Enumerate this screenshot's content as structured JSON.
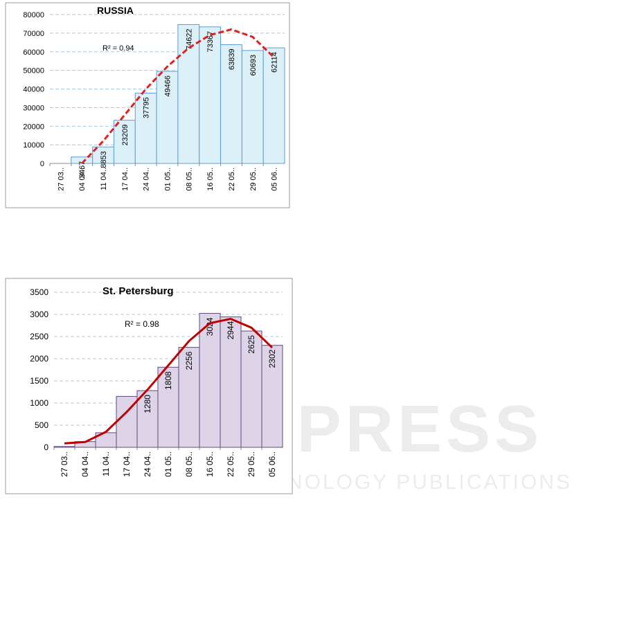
{
  "chart_data": [
    {
      "type": "bar",
      "title": "RUSSIA",
      "categories": [
        "27 03..",
        "04 04..",
        "11 04..",
        "17 04..",
        "24 04..",
        "01 05..",
        "08 05..",
        "16 05..",
        "22 05..",
        "29 05..",
        "05 06.."
      ],
      "values": [
        0,
        3467,
        8853,
        23209,
        37795,
        49466,
        74622,
        73367,
        63839,
        60693,
        62114
      ],
      "value_labels": [
        null,
        3467,
        8853,
        23209,
        37795,
        49466,
        74622,
        73367,
        63839,
        60693,
        62114
      ],
      "color": "#dcf0f7",
      "edge_color": "#5b9bd5",
      "ylim": [
        0,
        80000
      ],
      "yticks": [
        0,
        10000,
        20000,
        30000,
        40000,
        50000,
        60000,
        70000,
        80000
      ],
      "grid": true,
      "trendline": {
        "label": "R² = 0.94",
        "color": "#e02020",
        "dashed": true,
        "values": [
          null,
          0,
          12000,
          26000,
          40000,
          52000,
          62000,
          69000,
          72000,
          68000,
          57000
        ]
      }
    },
    {
      "type": "bar",
      "title": "St. Petersburg",
      "categories": [
        "27 03..",
        "04 04..",
        "11 04..",
        "17 04..",
        "24 04..",
        "01 05..",
        "08 05..",
        "16 05..",
        "22 05..",
        "29 05..",
        "05 06.."
      ],
      "values": [
        20,
        130,
        330,
        1150,
        1280,
        1808,
        2256,
        3024,
        2944,
        2625,
        2302
      ],
      "value_labels": [
        null,
        null,
        null,
        null,
        1280,
        1808,
        2256,
        3024,
        2944,
        2625,
        2302
      ],
      "color": "#ddd4e8",
      "edge_color": "#604a7b",
      "ylim": [
        0,
        3500
      ],
      "yticks": [
        0,
        500,
        1000,
        1500,
        2000,
        2500,
        3000,
        3500
      ],
      "grid": true,
      "trendline": {
        "label": "R² = 0.98",
        "color": "#c00000",
        "dashed": false,
        "values": [
          90,
          120,
          350,
          800,
          1300,
          1850,
          2400,
          2800,
          2900,
          2700,
          2250
        ]
      }
    }
  ],
  "watermark": {
    "title": "SCITEPRESS",
    "subtitle": "SCIENCE AND TECHNOLOGY PUBLICATIONS"
  }
}
